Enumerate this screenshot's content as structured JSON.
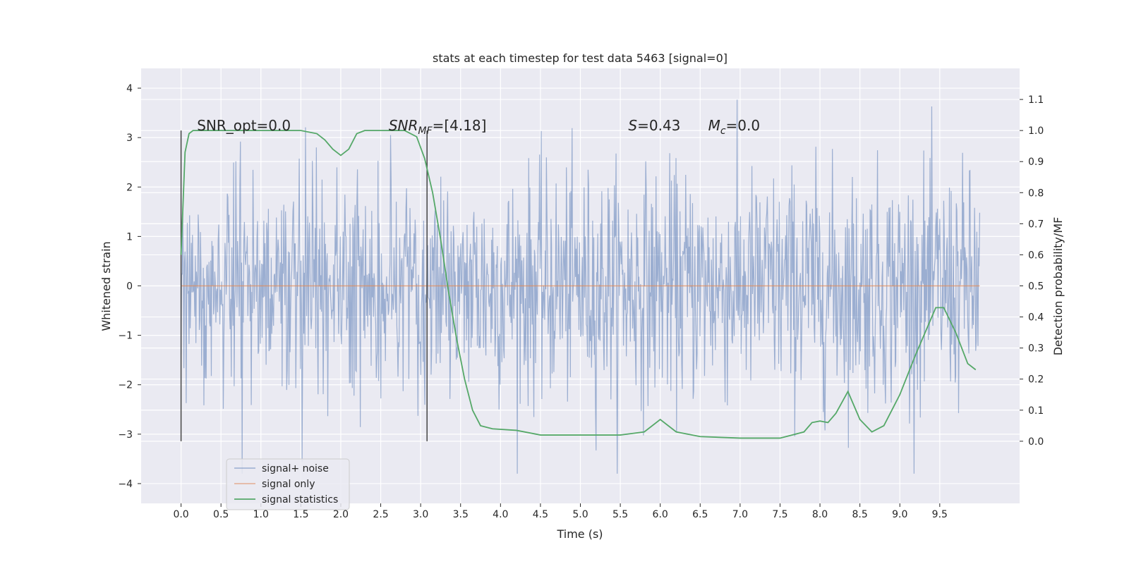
{
  "chart_data": {
    "type": "line",
    "title": "stats at each timestep for test data 5463 [signal=0]",
    "xlabel": "Time (s)",
    "ylabel_left": "Whitened strain",
    "ylabel_right": "Detection probability/MF",
    "xlim": [
      -0.5,
      10.5
    ],
    "ylim_left": [
      -4.4,
      4.4
    ],
    "ylim_right": [
      -0.2,
      1.2
    ],
    "xticks": [
      "0.0",
      "0.5",
      "1.0",
      "1.5",
      "2.0",
      "2.5",
      "3.0",
      "3.5",
      "4.0",
      "4.5",
      "5.0",
      "5.5",
      "6.0",
      "6.5",
      "7.0",
      "7.5",
      "8.0",
      "8.5",
      "9.0",
      "9.5"
    ],
    "yticks_left": [
      "4",
      "3",
      "2",
      "1",
      "0",
      "−1",
      "−2",
      "−3",
      "−4"
    ],
    "yticks_right": [
      "1.1",
      "1.0",
      "0.9",
      "0.8",
      "0.7",
      "0.6",
      "0.5",
      "0.4",
      "0.3",
      "0.2",
      "0.1",
      "0.0"
    ],
    "grid": true,
    "legend_position": "lower-left",
    "noise_range": [
      0.0,
      10.0
    ],
    "noise_seed": 5463,
    "noise_samples": 1400,
    "noise_color": "#4c72b0",
    "signal_only": {
      "x": [
        0.0,
        10.0
      ],
      "y": [
        0.0,
        0.0
      ],
      "color": "#dd8452"
    },
    "statistics": {
      "color": "#55a868",
      "x": [
        0.0,
        0.05,
        0.1,
        0.15,
        0.25,
        0.5,
        1.0,
        1.5,
        1.7,
        1.8,
        1.9,
        2.0,
        2.1,
        2.2,
        2.3,
        2.5,
        2.8,
        2.95,
        3.05,
        3.15,
        3.25,
        3.35,
        3.45,
        3.55,
        3.65,
        3.75,
        3.9,
        4.2,
        4.5,
        5.0,
        5.5,
        5.8,
        6.0,
        6.2,
        6.5,
        7.0,
        7.5,
        7.8,
        7.9,
        8.0,
        8.1,
        8.2,
        8.35,
        8.5,
        8.65,
        8.8,
        9.0,
        9.2,
        9.45,
        9.55,
        9.7,
        9.85,
        9.95
      ],
      "y": [
        0.6,
        0.93,
        0.99,
        1.0,
        1.0,
        1.0,
        1.0,
        1.0,
        0.99,
        0.97,
        0.94,
        0.92,
        0.94,
        0.99,
        1.0,
        1.0,
        1.0,
        0.98,
        0.91,
        0.8,
        0.65,
        0.48,
        0.33,
        0.2,
        0.1,
        0.05,
        0.04,
        0.035,
        0.02,
        0.02,
        0.02,
        0.03,
        0.07,
        0.03,
        0.015,
        0.01,
        0.01,
        0.03,
        0.06,
        0.065,
        0.06,
        0.09,
        0.16,
        0.07,
        0.03,
        0.05,
        0.15,
        0.28,
        0.43,
        0.43,
        0.35,
        0.25,
        0.23
      ]
    },
    "vlines": [
      0.0,
      3.08
    ],
    "vline_ymin": 0.0,
    "vline_ymax": 1.0,
    "annotations": {
      "snr_opt": {
        "x": 0.2,
        "text": "SNR_opt=0.0"
      },
      "snr_mf": {
        "x": 2.6,
        "prefix": "SNR",
        "sub": "MF",
        "suffix": "=[4.18]"
      },
      "s_stat": {
        "x": 5.6,
        "prefix": "S",
        "suffix": "=0.43"
      },
      "mc": {
        "x": 6.6,
        "prefix": "M",
        "sub": "c",
        "suffix": "=0.0"
      }
    },
    "legend": [
      "signal+ noise",
      "signal only",
      "signal statistics"
    ]
  }
}
